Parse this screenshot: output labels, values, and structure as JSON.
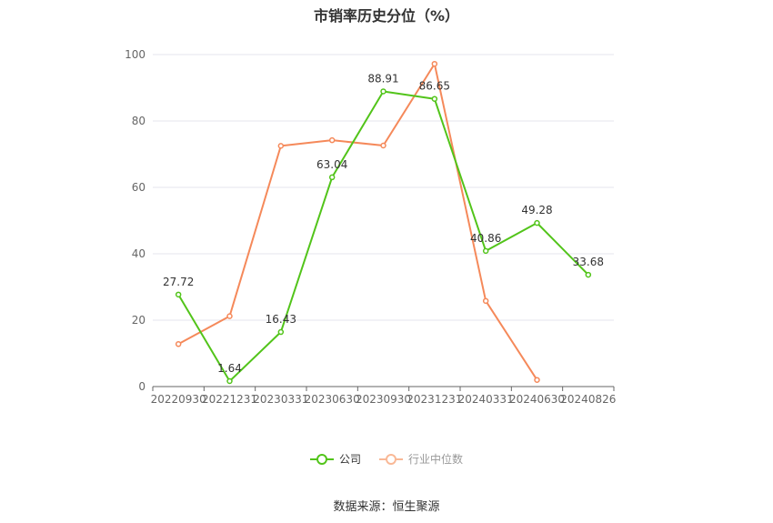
{
  "chart_data": {
    "type": "line",
    "title": "市销率历史分位（%）",
    "categories": [
      "20220930",
      "20221231",
      "20230331",
      "20230630",
      "20230930",
      "20231231",
      "20240331",
      "20240630",
      "20240826"
    ],
    "ylim": [
      0,
      100
    ],
    "yticks": [
      0,
      20,
      40,
      60,
      80,
      100
    ],
    "grid": true,
    "legend_position": "bottom",
    "series": [
      {
        "name": "公司",
        "color": "#52c41a",
        "values": [
          27.72,
          1.64,
          16.43,
          63.04,
          88.91,
          86.65,
          40.86,
          49.28,
          33.68
        ],
        "labels": [
          "27.72",
          "1.64",
          "16.43",
          "63.04",
          "88.91",
          "86.65",
          "40.86",
          "49.28",
          "33.68"
        ]
      },
      {
        "name": "行业中位数",
        "color": "#f5895a",
        "values": [
          12.8,
          21.2,
          72.5,
          74.2,
          72.6,
          97.2,
          25.8,
          2.0,
          null
        ]
      }
    ]
  },
  "source_text": "数据来源：恒生聚源"
}
